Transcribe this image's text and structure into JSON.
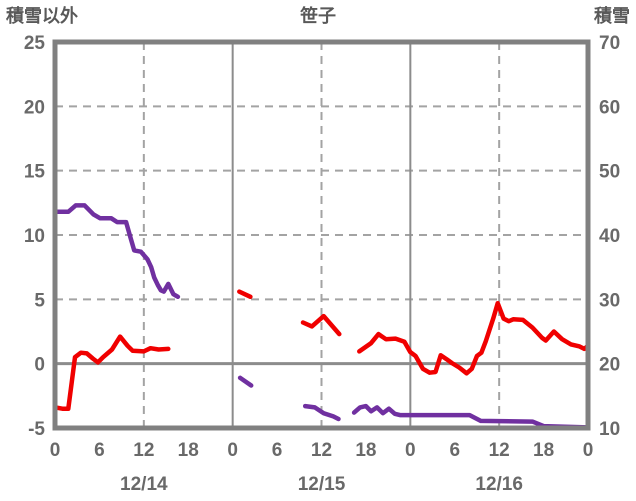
{
  "chart_data": {
    "type": "line",
    "title": "笹子",
    "left_axis": {
      "title": "積雪以外",
      "min": -5,
      "max": 25,
      "ticks": [
        25,
        20,
        15,
        10,
        5,
        0,
        -5
      ]
    },
    "right_axis": {
      "title": "積雪",
      "min": 10,
      "max": 70,
      "ticks": [
        70,
        60,
        50,
        40,
        30,
        20,
        10
      ]
    },
    "x_axis": {
      "range_hours": [
        0,
        72
      ],
      "hour_ticks": [
        {
          "t": 0,
          "label": "0"
        },
        {
          "t": 6,
          "label": "6"
        },
        {
          "t": 12,
          "label": "12"
        },
        {
          "t": 18,
          "label": "18"
        },
        {
          "t": 24,
          "label": "0"
        },
        {
          "t": 30,
          "label": "6"
        },
        {
          "t": 36,
          "label": "12"
        },
        {
          "t": 42,
          "label": "18"
        },
        {
          "t": 48,
          "label": "0"
        },
        {
          "t": 54,
          "label": "6"
        },
        {
          "t": 60,
          "label": "12"
        },
        {
          "t": 66,
          "label": "18"
        },
        {
          "t": 72,
          "label": "0"
        }
      ],
      "date_labels": [
        {
          "t": 12,
          "label": "12/14"
        },
        {
          "t": 36,
          "label": "12/15"
        },
        {
          "t": 60,
          "label": "12/16"
        }
      ]
    },
    "gridlines": {
      "h_dashed_left_values": [
        20,
        15,
        10,
        5
      ],
      "h_solid_left_values": [
        0
      ],
      "v_dashed_hours": [
        12,
        36,
        60
      ],
      "v_solid_hours": [
        24,
        48
      ]
    },
    "legend_position": "none",
    "grid": true,
    "series": [
      {
        "name": "積雪以外",
        "axis": "left",
        "color_key": "red",
        "segments": [
          [
            [
              0,
              -3.4
            ],
            [
              1,
              -3.5
            ],
            [
              1.8,
              -3.5
            ],
            [
              2.7,
              0.5
            ],
            [
              3.5,
              0.85
            ],
            [
              4.3,
              0.8
            ],
            [
              5.1,
              0.4
            ],
            [
              5.8,
              0.1
            ],
            [
              6.5,
              0.5
            ],
            [
              7.7,
              1.1
            ],
            [
              8.8,
              2.1
            ],
            [
              9.8,
              1.4
            ],
            [
              10.5,
              1.0
            ],
            [
              12,
              0.95
            ],
            [
              12.9,
              1.2
            ],
            [
              14,
              1.1
            ],
            [
              15.3,
              1.15
            ]
          ],
          [
            [
              24.9,
              5.6
            ],
            [
              26.4,
              5.2
            ]
          ],
          [
            [
              33.5,
              3.2
            ],
            [
              34.7,
              2.9
            ],
            [
              36.3,
              3.7
            ],
            [
              38.4,
              2.3
            ]
          ],
          [
            [
              41.1,
              0.95
            ],
            [
              42.7,
              1.6
            ],
            [
              43.7,
              2.3
            ],
            [
              44.7,
              1.9
            ],
            [
              46,
              1.95
            ],
            [
              47.2,
              1.7
            ],
            [
              48,
              0.9
            ],
            [
              48.7,
              0.6
            ],
            [
              49.7,
              -0.4
            ],
            [
              50.6,
              -0.7
            ],
            [
              51.4,
              -0.65
            ],
            [
              52.1,
              0.65
            ],
            [
              52.9,
              0.35
            ],
            [
              53.6,
              0.05
            ],
            [
              54.6,
              -0.3
            ],
            [
              55.6,
              -0.75
            ],
            [
              56.3,
              -0.4
            ],
            [
              57,
              0.6
            ],
            [
              57.6,
              0.85
            ],
            [
              58.2,
              1.75
            ],
            [
              59.2,
              3.5
            ],
            [
              59.8,
              4.7
            ],
            [
              60.6,
              3.5
            ],
            [
              61.3,
              3.3
            ],
            [
              61.9,
              3.45
            ],
            [
              63.2,
              3.4
            ],
            [
              64.5,
              2.8
            ],
            [
              65.8,
              2.0
            ],
            [
              66.3,
              1.8
            ],
            [
              67.4,
              2.5
            ],
            [
              68.5,
              1.9
            ],
            [
              69.7,
              1.5
            ],
            [
              70.8,
              1.35
            ],
            [
              71.5,
              1.15
            ],
            [
              72,
              1.4
            ]
          ]
        ]
      },
      {
        "name": "積雪",
        "axis": "right",
        "color_key": "purple",
        "segments": [
          [
            [
              0,
              43.6
            ],
            [
              1.8,
              43.6
            ],
            [
              2.8,
              44.6
            ],
            [
              4,
              44.6
            ],
            [
              5.2,
              43.2
            ],
            [
              6.1,
              42.6
            ],
            [
              7.6,
              42.6
            ],
            [
              8.4,
              42
            ],
            [
              9.6,
              42
            ],
            [
              10.2,
              39.6
            ],
            [
              10.7,
              37.6
            ],
            [
              11.6,
              37.4
            ],
            [
              12.5,
              36.2
            ],
            [
              13,
              35
            ],
            [
              13.4,
              33.4
            ],
            [
              13.9,
              32.2
            ],
            [
              14.3,
              31.4
            ],
            [
              14.7,
              31.2
            ],
            [
              15.3,
              32.4
            ],
            [
              16,
              30.8
            ],
            [
              16.6,
              30.4
            ]
          ],
          [
            [
              25,
              17.8
            ],
            [
              26.5,
              16.6
            ]
          ],
          [
            [
              33.8,
              13.4
            ],
            [
              35.1,
              13.2
            ],
            [
              36.3,
              12.3
            ],
            [
              37.6,
              11.8
            ],
            [
              38.3,
              11.4
            ]
          ],
          [
            [
              40.4,
              12.4
            ],
            [
              41.2,
              13.2
            ],
            [
              42,
              13.4
            ],
            [
              42.7,
              12.6
            ],
            [
              43.5,
              13.2
            ],
            [
              44.3,
              12.3
            ],
            [
              45.1,
              13
            ],
            [
              45.9,
              12.2
            ],
            [
              46.6,
              12
            ],
            [
              56,
              12
            ],
            [
              57.5,
              11.1
            ],
            [
              64.5,
              11
            ],
            [
              66,
              10.3
            ],
            [
              71.9,
              10.1
            ]
          ]
        ]
      }
    ],
    "colors": {
      "red": "#f00000",
      "purple": "#7030a0",
      "grid_dashed": "#a3a3a3",
      "grid_solid": "#8c8c8c",
      "border": "#808080",
      "tick_text": "#696969"
    }
  }
}
